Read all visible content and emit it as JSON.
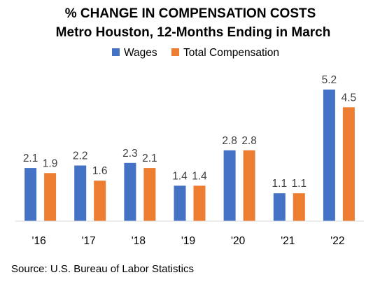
{
  "chart_data": {
    "type": "bar",
    "title": "% CHANGE IN COMPENSATION COSTS",
    "subtitle": "Metro Houston, 12-Months Ending in March",
    "categories": [
      "'16",
      "'17",
      "'18",
      "'19",
      "'20",
      "'21",
      "'22"
    ],
    "series": [
      {
        "name": "Wages",
        "values": [
          2.1,
          2.2,
          2.3,
          1.4,
          2.8,
          1.1,
          5.2
        ],
        "labels": [
          "2.1",
          "2.2",
          "2.3",
          "1.4",
          "2.8",
          "1.1",
          "5.2"
        ],
        "color": "#4472C4"
      },
      {
        "name": "Total Compensation",
        "values": [
          1.9,
          1.6,
          2.1,
          1.4,
          2.8,
          1.1,
          4.5
        ],
        "labels": [
          "1.9",
          "1.6",
          "2.1",
          "1.4",
          "2.8",
          "1.1",
          "4.5"
        ],
        "color": "#ED7D31"
      }
    ],
    "ylim": [
      0,
      5.2
    ],
    "legend_position": "top",
    "grid": false,
    "source": "Source: U.S. Bureau of Labor Statistics"
  }
}
